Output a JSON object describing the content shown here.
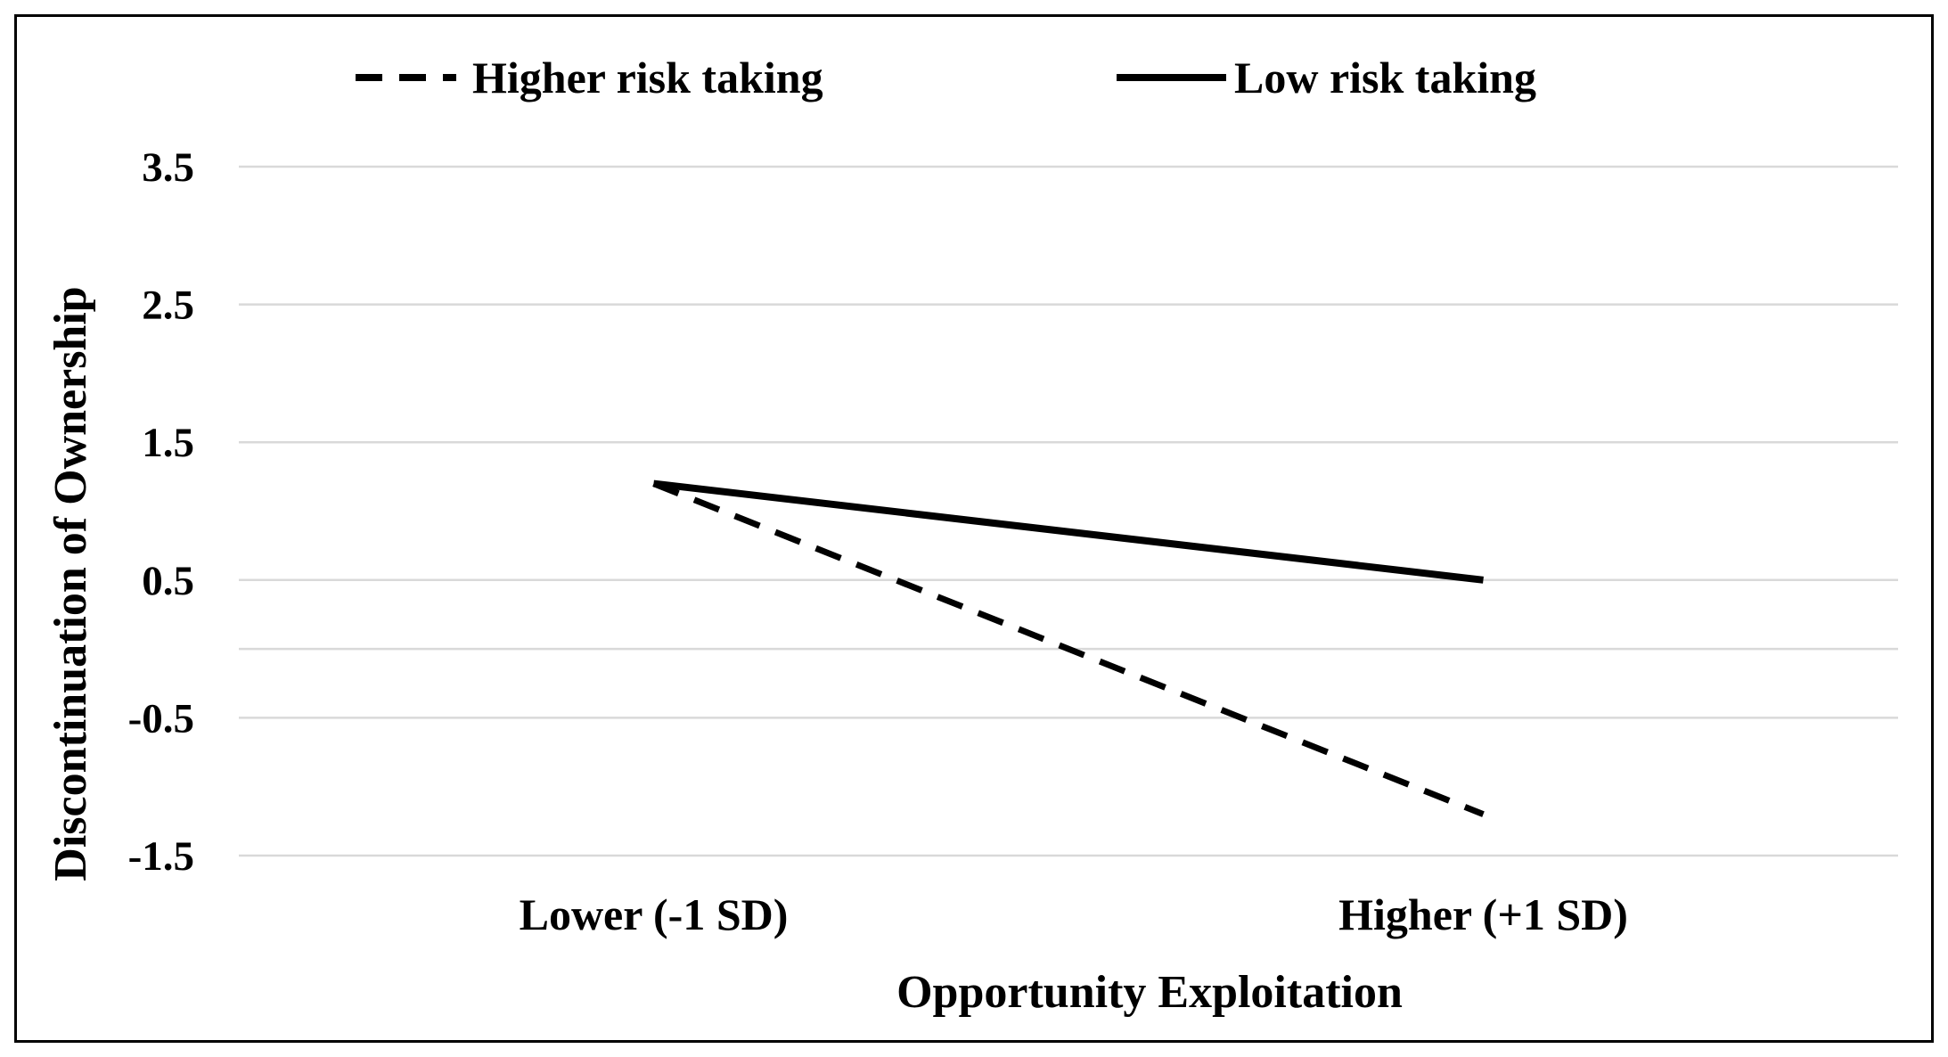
{
  "chart_data": {
    "type": "line",
    "categories": [
      "Lower (-1 SD)",
      "Higher (+1 SD)"
    ],
    "xlabel": "Opportunity Exploitation",
    "ylabel": "Discontinuation of Ownership",
    "ylim": [
      -1.5,
      3.5
    ],
    "yticks": [
      {
        "value": 3.5,
        "label": "3.5"
      },
      {
        "value": 2.5,
        "label": "2.5"
      },
      {
        "value": 1.5,
        "label": "1.5"
      },
      {
        "value": 0.5,
        "label": "0.5"
      },
      {
        "value": -0.5,
        "label": "-0.5"
      },
      {
        "value": -1.5,
        "label": "-1.5"
      }
    ],
    "gridlines": [
      3.5,
      2.5,
      1.5,
      0.5,
      0,
      -0.5,
      -1.5
    ],
    "grid": true,
    "legend_position": "top",
    "series": [
      {
        "name": "Higher risk taking",
        "values": [
          1.2,
          -1.2
        ],
        "style": "dashed",
        "color": "#000000"
      },
      {
        "name": "Low risk taking",
        "values": [
          1.2,
          0.5
        ],
        "style": "solid",
        "color": "#000000"
      }
    ]
  }
}
